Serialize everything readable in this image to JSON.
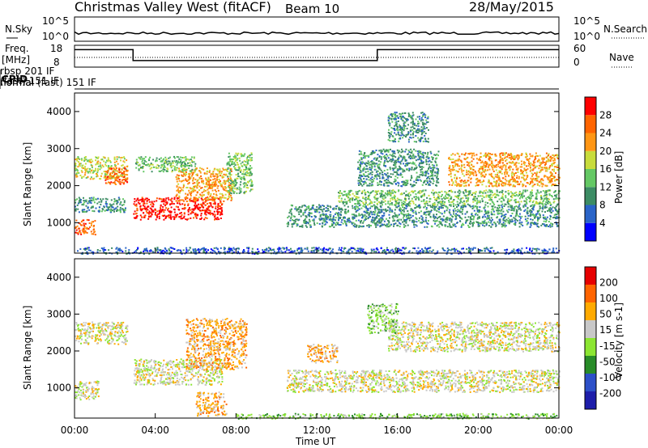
{
  "header": {
    "title": "Christmas Valley West (fitACF)",
    "beam": "Beam 10",
    "date": "28/May/2015"
  },
  "strip_labels": {
    "nsky": "N.Sky",
    "nsearch": "N.Search",
    "freq_line1": "Freq.",
    "freq_line2": "[MHz]",
    "nave": "Nave",
    "cpid": "CPID",
    "nsky_ticks": [
      "10^5",
      "10^0"
    ],
    "freq_ticks": [
      "18",
      "8"
    ],
    "nave_ticks": [
      "60",
      "0"
    ]
  },
  "cpid_segments": [
    {
      "label": "normal",
      "start_hour": 0.0
    },
    {
      "label": "rbsp 201 IF",
      "start_hour": 2.0
    },
    {
      "label": "(fast) 151 IF",
      "start_hour": 2.0
    },
    {
      "label": "normal (fast) 151 IF",
      "start_hour": 8.0
    }
  ],
  "x_axis": {
    "label": "Time UT",
    "ticks": [
      "00:00",
      "04:00",
      "08:00",
      "12:00",
      "16:00",
      "20:00",
      "00:00"
    ],
    "range_hours": [
      0,
      24
    ]
  },
  "power_panel": {
    "ylabel": "Slant Range [km]",
    "yticks": [
      "1000",
      "2000",
      "3000",
      "4000"
    ],
    "colorbar_label": "Power [dB]",
    "colorbar_ticks": [
      "28",
      "24",
      "20",
      "16",
      "12",
      "8",
      "4"
    ]
  },
  "velocity_panel": {
    "ylabel": "Slant Range [km]",
    "yticks": [
      "1000",
      "2000",
      "3000",
      "4000"
    ],
    "colorbar_label": "Velocity [m s-1]",
    "colorbar_ticks": [
      "200",
      "100",
      "50",
      "15",
      "-15",
      "-50",
      "-100",
      "-200"
    ]
  },
  "chart_data": {
    "type": "heatmap",
    "x_unit": "hours UT",
    "y_unit": "km",
    "xlim": [
      0,
      24
    ],
    "ylim": [
      180,
      4500
    ],
    "freq_mhz": [
      {
        "start": 0,
        "end": 2.9,
        "value": 16
      },
      {
        "start": 2.9,
        "end": 15.0,
        "value": 11
      },
      {
        "start": 15.0,
        "end": 24,
        "value": 16
      }
    ],
    "power_colors": [
      "#0000ff",
      "#2a64c8",
      "#3c8c64",
      "#64c864",
      "#c8dc3c",
      "#ff9614",
      "#ff6400",
      "#ff0000"
    ],
    "velocity_colors": [
      "#1e1eaa",
      "#2d50c8",
      "#288c28",
      "#8ce632",
      "#c8c8c8",
      "#ffaa00",
      "#ff6400",
      "#e60000"
    ],
    "power_regions": [
      {
        "t0": 0.0,
        "t1": 2.6,
        "r0": 2200,
        "r1": 2800,
        "level": 4
      },
      {
        "t0": 1.5,
        "t1": 2.6,
        "r0": 2050,
        "r1": 2500,
        "level": 6
      },
      {
        "t0": 0.0,
        "t1": 1.0,
        "r0": 700,
        "r1": 1100,
        "level": 6
      },
      {
        "t0": 0.0,
        "t1": 2.5,
        "r0": 1300,
        "r1": 1700,
        "level": 2
      },
      {
        "t0": 2.9,
        "t1": 7.3,
        "r0": 1100,
        "r1": 1700,
        "level": 7
      },
      {
        "t0": 5.0,
        "t1": 7.8,
        "r0": 1600,
        "r1": 2500,
        "level": 5
      },
      {
        "t0": 3.0,
        "t1": 6.0,
        "r0": 2400,
        "r1": 2800,
        "level": 3
      },
      {
        "t0": 7.5,
        "t1": 8.8,
        "r0": 1800,
        "r1": 2900,
        "level": 3
      },
      {
        "t0": 10.5,
        "t1": 24.0,
        "r0": 900,
        "r1": 1500,
        "level": 2
      },
      {
        "t0": 13.0,
        "t1": 24.0,
        "r0": 1500,
        "r1": 1900,
        "level": 3
      },
      {
        "t0": 14.0,
        "t1": 18.0,
        "r0": 2000,
        "r1": 3000,
        "level": 2
      },
      {
        "t0": 18.5,
        "t1": 24.0,
        "r0": 2000,
        "r1": 2900,
        "level": 5
      },
      {
        "t0": 15.5,
        "t1": 17.5,
        "r0": 3200,
        "r1": 4000,
        "level": 2
      },
      {
        "t0": 0.0,
        "t1": 24.0,
        "r0": 180,
        "r1": 350,
        "level": 1
      }
    ],
    "velocity_regions": [
      {
        "t0": 0.0,
        "t1": 2.6,
        "r0": 2200,
        "r1": 2800,
        "level": 4
      },
      {
        "t0": 0.0,
        "t1": 1.2,
        "r0": 700,
        "r1": 1200,
        "level": 4
      },
      {
        "t0": 2.9,
        "t1": 7.3,
        "r0": 1100,
        "r1": 1800,
        "level": 4
      },
      {
        "t0": 5.5,
        "t1": 8.5,
        "r0": 1500,
        "r1": 2900,
        "level": 5
      },
      {
        "t0": 6.0,
        "t1": 7.5,
        "r0": 250,
        "r1": 900,
        "level": 5
      },
      {
        "t0": 11.5,
        "t1": 13.0,
        "r0": 1700,
        "r1": 2200,
        "level": 5
      },
      {
        "t0": 10.5,
        "t1": 24.0,
        "r0": 900,
        "r1": 1500,
        "level": 4
      },
      {
        "t0": 15.5,
        "t1": 24.0,
        "r0": 2000,
        "r1": 2800,
        "level": 4
      },
      {
        "t0": 14.5,
        "t1": 16.0,
        "r0": 2500,
        "r1": 3300,
        "level": 3
      },
      {
        "t0": 8.0,
        "t1": 24.0,
        "r0": 180,
        "r1": 320,
        "level": 3
      }
    ]
  }
}
